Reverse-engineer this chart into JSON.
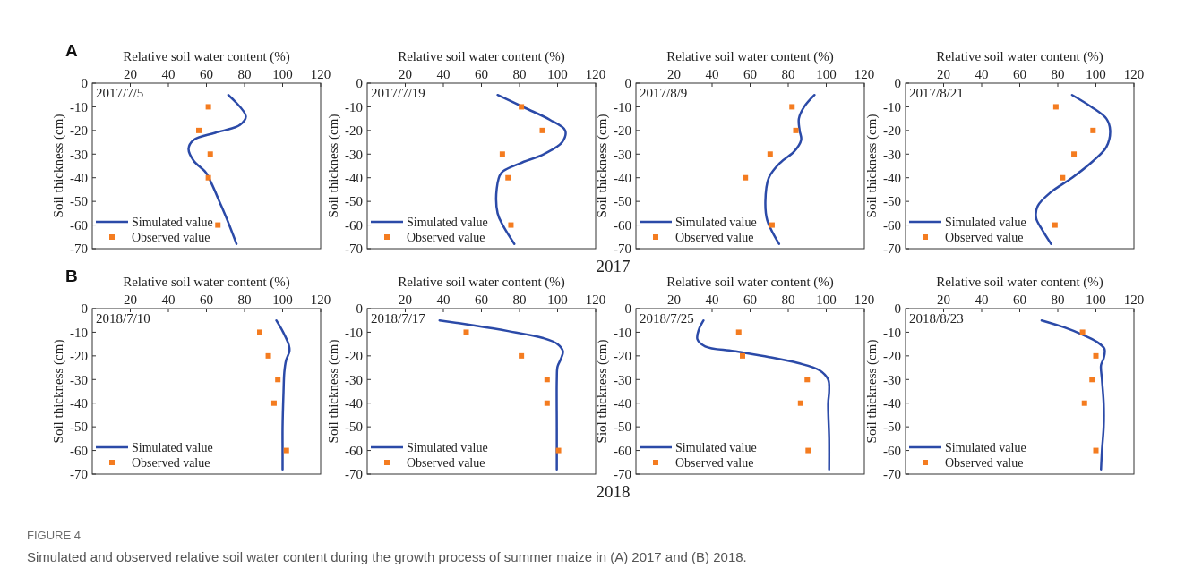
{
  "chart_data": [
    {
      "type": "line",
      "xlabel": "Relative soil water content (%)",
      "ylabel": "Soil thickness (cm)",
      "xlim": [
        0,
        120
      ],
      "xticks": [
        20,
        40,
        60,
        80,
        100,
        120
      ],
      "ylim": [
        -70,
        0
      ],
      "yticks": [
        0,
        -10,
        -20,
        -30,
        -40,
        -50,
        -60,
        -70
      ],
      "legend": "bottom left",
      "annotations": [
        "2017/7/5",
        "A",
        "2017"
      ],
      "series": [
        {
          "name": "Simulated value",
          "type": "line",
          "color": "#2b4aa8",
          "x": [
            71.5,
            80.7,
            77.5,
            64.6,
            53.3,
            50.6,
            53.3,
            59.7,
            63,
            67,
            71,
            75.8
          ],
          "values": [
            -5,
            -14,
            -17.7,
            -21,
            -24,
            -27.7,
            -32.8,
            -37.8,
            -43,
            -50.4,
            -58,
            -68
          ]
        },
        {
          "name": "Observed value",
          "type": "scatter",
          "marker": "square",
          "color": "#f47c20",
          "x": [
            61,
            56,
            62,
            61,
            66
          ],
          "values": [
            -10,
            -20,
            -30,
            -40,
            -60
          ]
        }
      ]
    },
    {
      "type": "line",
      "xlabel": "Relative soil water content (%)",
      "ylabel": "Soil thickness (cm)",
      "xlim": [
        0,
        120
      ],
      "xticks": [
        20,
        40,
        60,
        80,
        100,
        120
      ],
      "ylim": [
        -70,
        0
      ],
      "yticks": [
        0,
        -10,
        -20,
        -30,
        -40,
        -50,
        -60,
        -70
      ],
      "legend": "bottom left",
      "annotations": [
        "2017/7/19"
      ],
      "series": [
        {
          "name": "Simulated value",
          "type": "line",
          "color": "#2b4aa8",
          "x": [
            68.5,
            83,
            96,
            104,
            102.4,
            92.8,
            80,
            70.4,
            68,
            68.5,
            71.2,
            77.3
          ],
          "values": [
            -5,
            -10.5,
            -15.5,
            -20,
            -25,
            -30,
            -34,
            -38,
            -45,
            -55,
            -60,
            -68
          ]
        },
        {
          "name": "Observed value",
          "type": "scatter",
          "marker": "square",
          "color": "#f47c20",
          "x": [
            81,
            92,
            71,
            74,
            75.5
          ],
          "values": [
            -10,
            -20,
            -30,
            -40,
            -60
          ]
        }
      ]
    },
    {
      "type": "line",
      "xlabel": "Relative soil water content (%)",
      "ylabel": "Soil thickness (cm)",
      "xlim": [
        0,
        120
      ],
      "xticks": [
        20,
        40,
        60,
        80,
        100,
        120
      ],
      "ylim": [
        -70,
        0
      ],
      "yticks": [
        0,
        -10,
        -20,
        -30,
        -40,
        -50,
        -60,
        -70
      ],
      "legend": "bottom left",
      "annotations": [
        "2017/8/9"
      ],
      "series": [
        {
          "name": "Simulated value",
          "type": "line",
          "color": "#2b4aa8",
          "x": [
            93.8,
            88.4,
            85.6,
            86,
            86.8,
            83,
            76,
            69.8,
            68,
            69,
            75.2
          ],
          "values": [
            -5,
            -10,
            -15,
            -20,
            -24,
            -29,
            -33.5,
            -40,
            -50,
            -58,
            -68
          ]
        },
        {
          "name": "Observed value",
          "type": "scatter",
          "marker": "square",
          "color": "#f47c20",
          "x": [
            82,
            84,
            70.5,
            57.5,
            71.5
          ],
          "values": [
            -10,
            -20,
            -30,
            -40,
            -60
          ]
        }
      ]
    },
    {
      "type": "line",
      "xlabel": "Relative soil water content (%)",
      "ylabel": "Soil thickness (cm)",
      "xlim": [
        0,
        120
      ],
      "xticks": [
        20,
        40,
        60,
        80,
        100,
        120
      ],
      "ylim": [
        -70,
        0
      ],
      "yticks": [
        0,
        -10,
        -20,
        -30,
        -40,
        -50,
        -60,
        -70
      ],
      "legend": "bottom left",
      "annotations": [
        "2017/8/21"
      ],
      "series": [
        {
          "name": "Simulated value",
          "type": "line",
          "color": "#2b4aa8",
          "x": [
            87.5,
            97.6,
            105.5,
            107.5,
            105.5,
            98.4,
            87.5,
            76.5,
            69.4,
            68.6,
            71.8,
            76.5
          ],
          "values": [
            -5,
            -10,
            -15,
            -20,
            -27,
            -33,
            -40,
            -46,
            -52,
            -57,
            -62,
            -68
          ]
        },
        {
          "name": "Observed value",
          "type": "scatter",
          "marker": "square",
          "color": "#f47c20",
          "x": [
            79,
            98.5,
            88.5,
            82.5,
            78.5
          ],
          "values": [
            -10,
            -20,
            -30,
            -40,
            -60
          ]
        }
      ]
    },
    {
      "type": "line",
      "xlabel": "Relative soil water content (%)",
      "ylabel": "Soil thickness (cm)",
      "xlim": [
        0,
        120
      ],
      "xticks": [
        20,
        40,
        60,
        80,
        100,
        120
      ],
      "ylim": [
        -70,
        0
      ],
      "yticks": [
        0,
        -10,
        -20,
        -30,
        -40,
        -50,
        -60,
        -70
      ],
      "legend": "bottom left",
      "annotations": [
        "2018/7/10",
        "B",
        "2018"
      ],
      "series": [
        {
          "name": "Simulated value",
          "type": "line",
          "color": "#2b4aa8",
          "x": [
            96.7,
            100.3,
            103.3,
            103.6,
            101.8,
            100.9,
            100.5,
            100,
            100,
            100
          ],
          "values": [
            -5,
            -10,
            -15.5,
            -18,
            -22,
            -27,
            -35,
            -50,
            -60,
            -68
          ]
        },
        {
          "name": "Observed value",
          "type": "scatter",
          "marker": "square",
          "color": "#f47c20",
          "x": [
            88,
            92.5,
            97.5,
            95.5,
            102
          ],
          "values": [
            -10,
            -20,
            -30,
            -40,
            -60
          ]
        }
      ]
    },
    {
      "type": "line",
      "xlabel": "Relative soil water content (%)",
      "ylabel": "Soil thickness (cm)",
      "xlim": [
        0,
        120
      ],
      "xticks": [
        20,
        40,
        60,
        80,
        100,
        120
      ],
      "ylim": [
        -70,
        0
      ],
      "yticks": [
        0,
        -10,
        -20,
        -30,
        -40,
        -50,
        -60,
        -70
      ],
      "legend": "bottom left",
      "annotations": [
        "2018/7/17"
      ],
      "series": [
        {
          "name": "Simulated value",
          "type": "line",
          "color": "#2b4aa8",
          "x": [
            38,
            55,
            74,
            92.5,
            100,
            102.8,
            101.9,
            100,
            99.6,
            99.6,
            99.6
          ],
          "values": [
            -5,
            -7,
            -9.5,
            -12.5,
            -15,
            -18,
            -21,
            -24.5,
            -30,
            -50,
            -68
          ]
        },
        {
          "name": "Observed value",
          "type": "scatter",
          "marker": "square",
          "color": "#f47c20",
          "x": [
            52,
            81,
            94.5,
            94.5,
            100.5
          ],
          "values": [
            -10,
            -20,
            -30,
            -40,
            -60
          ]
        }
      ]
    },
    {
      "type": "line",
      "xlabel": "Relative soil water content (%)",
      "ylabel": "Siol thickness (cm)",
      "xlim": [
        0,
        120
      ],
      "xticks": [
        20,
        40,
        60,
        80,
        100,
        120
      ],
      "ylim": [
        -70,
        0
      ],
      "yticks": [
        0,
        -10,
        -20,
        -30,
        -40,
        -50,
        -60,
        -70
      ],
      "legend": "bottom left",
      "annotations": [
        "2018/7/25"
      ],
      "series": [
        {
          "name": "Simulated value",
          "type": "line",
          "color": "#2b4aa8",
          "x": [
            35.5,
            33,
            32.3,
            36.4,
            51.4,
            70,
            85,
            96.3,
            101,
            101.5,
            101,
            101.5,
            101.5
          ],
          "values": [
            -5,
            -9,
            -13,
            -16,
            -18,
            -20.5,
            -23,
            -26,
            -30,
            -35,
            -40,
            -55,
            -68
          ]
        },
        {
          "name": "Observed value",
          "type": "scatter",
          "marker": "square",
          "color": "#f47c20",
          "x": [
            54,
            56,
            90,
            86.5,
            90.5
          ],
          "values": [
            -10,
            -20,
            -30,
            -40,
            -60
          ]
        }
      ]
    },
    {
      "type": "line",
      "xlabel": "Relative soil water content (%)",
      "ylabel": "Soil thickness (cm)",
      "xlim": [
        0,
        120
      ],
      "xticks": [
        20,
        40,
        60,
        80,
        100,
        120
      ],
      "ylim": [
        -70,
        0
      ],
      "yticks": [
        0,
        -10,
        -20,
        -30,
        -40,
        -50,
        -60,
        -70
      ],
      "legend": "bottom left",
      "annotations": [
        "2018/8/23"
      ],
      "series": [
        {
          "name": "Simulated value",
          "type": "line",
          "color": "#2b4aa8",
          "x": [
            71.5,
            83.6,
            92.9,
            100.4,
            104.5,
            104.1,
            102.7,
            103.2,
            104.1,
            104.1,
            103.2,
            102.7
          ],
          "values": [
            -5,
            -8,
            -11,
            -14,
            -17,
            -21,
            -24,
            -30,
            -40,
            -50,
            -60,
            -68
          ]
        },
        {
          "name": "Observed value",
          "type": "scatter",
          "marker": "square",
          "color": "#f47c20",
          "x": [
            93,
            100,
            98,
            94,
            100
          ],
          "values": [
            -10,
            -20,
            -30,
            -40,
            -60
          ]
        }
      ]
    },
    {
      "type": "other",
      "title": "FIGURE 4",
      "annotations": [
        "Simulated and observed relative soil water content during the growth process of summer maize in (A) 2017 and (B) 2018."
      ]
    }
  ]
}
